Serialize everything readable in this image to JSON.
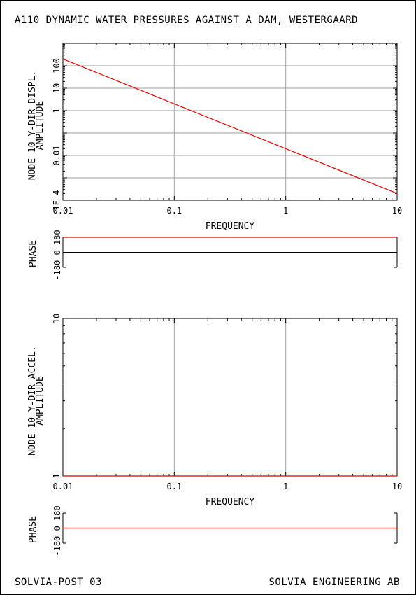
{
  "header": {
    "title": "A110 DYNAMIC WATER PRESSURES AGAINST A DAM, WESTERGAARD"
  },
  "footer": {
    "left": "SOLVIA-POST 03",
    "right": "SOLVIA ENGINEERING AB"
  },
  "colors": {
    "curve": "#e00000",
    "grid": "#a0a0a0",
    "axis": "#000000"
  },
  "chart_data": [
    {
      "type": "line",
      "xlabel": "FREQUENCY",
      "ylabel": [
        "NODE 10 Y-DIR DISPL.",
        "AMPLITUDE"
      ],
      "xscale": "log",
      "yscale": "log",
      "xlim": [
        0.01,
        10
      ],
      "ylim": [
        0.0001,
        1000
      ],
      "xticks": [
        {
          "v": 0.01,
          "label": "0.01"
        },
        {
          "v": 0.1,
          "label": "0.1"
        },
        {
          "v": 1,
          "label": "1"
        },
        {
          "v": 10,
          "label": "10"
        }
      ],
      "yticks": [
        {
          "v": 0.0001,
          "label": "1E-4"
        },
        {
          "v": 0.01,
          "label": "0.01"
        },
        {
          "v": 1,
          "label": "1"
        },
        {
          "v": 10,
          "label": "10"
        },
        {
          "v": 100,
          "label": "100"
        }
      ],
      "grid": true,
      "series": [
        {
          "x": [
            0.01,
            10
          ],
          "y": [
            200,
            0.0002
          ]
        }
      ]
    },
    {
      "type": "line",
      "ylabel": [
        "PHASE"
      ],
      "xscale": "log",
      "xlim": [
        0.01,
        10
      ],
      "ylim": [
        -180,
        180
      ],
      "ytick_labels": [
        "-180",
        "0",
        "180"
      ],
      "series": [
        {
          "x": [
            0.01,
            10
          ],
          "y": [
            180,
            180
          ]
        }
      ]
    },
    {
      "type": "line",
      "xlabel": "FREQUENCY",
      "ylabel": [
        "NODE 10 Y-DIR ACCEL.",
        "AMPLITUDE"
      ],
      "xscale": "log",
      "yscale": "log",
      "xlim": [
        0.01,
        10
      ],
      "ylim": [
        1,
        10
      ],
      "xticks": [
        {
          "v": 0.01,
          "label": "0.01"
        },
        {
          "v": 0.1,
          "label": "0.1"
        },
        {
          "v": 1,
          "label": "1"
        },
        {
          "v": 10,
          "label": "10"
        }
      ],
      "yticks": [
        {
          "v": 1,
          "label": "1"
        },
        {
          "v": 10,
          "label": "10"
        }
      ],
      "grid": true,
      "series": [
        {
          "x": [
            0.01,
            10
          ],
          "y": [
            1,
            1
          ]
        }
      ]
    },
    {
      "type": "line",
      "ylabel": [
        "PHASE"
      ],
      "xscale": "log",
      "xlim": [
        0.01,
        10
      ],
      "ylim": [
        -180,
        180
      ],
      "ytick_labels": [
        "-180",
        "0",
        "180"
      ],
      "series": [
        {
          "x": [
            0.01,
            10
          ],
          "y": [
            0,
            0
          ]
        }
      ]
    }
  ]
}
